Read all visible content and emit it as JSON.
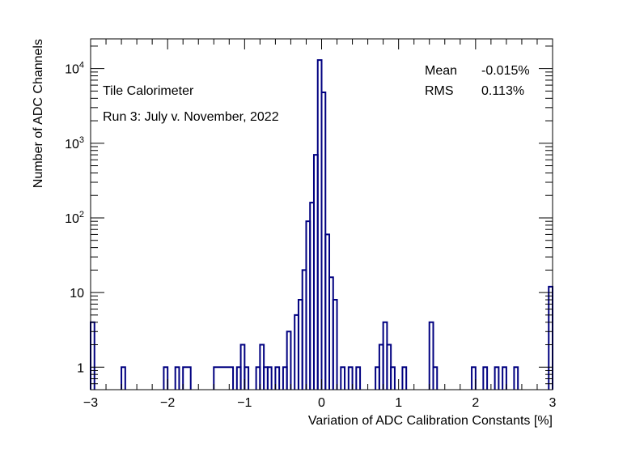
{
  "chart_data": {
    "type": "histogram",
    "xlabel": "Variation of ADC Calibration Constants [%]",
    "ylabel": "Number of ADC Channels",
    "xlim": [
      -3,
      3
    ],
    "ylim": [
      0.5,
      25000
    ],
    "yscale": "log",
    "line_color": "#000080",
    "x_ticks": [
      -3,
      -2,
      -1,
      0,
      1,
      2,
      3
    ],
    "x_tick_labels": [
      "−3",
      "−2",
      "−1",
      "0",
      "1",
      "2",
      "3"
    ],
    "y_ticks": [
      1,
      10,
      100,
      1000,
      10000
    ],
    "y_tick_labels": [
      {
        "base": "1",
        "exp": ""
      },
      {
        "base": "10",
        "exp": ""
      },
      {
        "base": "10",
        "exp": "2"
      },
      {
        "base": "10",
        "exp": "3"
      },
      {
        "base": "10",
        "exp": "4"
      }
    ],
    "annotations": [
      "Tile Calorimeter",
      "Run 3: July v. November, 2022"
    ],
    "stats": {
      "mean_label": "Mean",
      "mean_value": "-0.015%",
      "rms_label": "RMS",
      "rms_value": "0.113%"
    },
    "bins": [
      [
        -3.0,
        -2.95,
        4
      ],
      [
        -2.6,
        -2.55,
        1
      ],
      [
        -2.05,
        -2.0,
        1
      ],
      [
        -1.9,
        -1.85,
        1
      ],
      [
        -1.8,
        -1.7,
        1
      ],
      [
        -1.4,
        -1.15,
        1
      ],
      [
        -1.1,
        -1.05,
        1
      ],
      [
        -1.05,
        -1.0,
        2
      ],
      [
        -1.0,
        -0.95,
        1
      ],
      [
        -0.85,
        -0.8,
        1
      ],
      [
        -0.8,
        -0.75,
        2
      ],
      [
        -0.75,
        -0.7,
        1
      ],
      [
        -0.7,
        -0.65,
        1
      ],
      [
        -0.6,
        -0.55,
        1
      ],
      [
        -0.5,
        -0.45,
        1
      ],
      [
        -0.45,
        -0.4,
        3
      ],
      [
        -0.35,
        -0.3,
        5
      ],
      [
        -0.3,
        -0.25,
        8
      ],
      [
        -0.25,
        -0.2,
        20
      ],
      [
        -0.2,
        -0.15,
        90
      ],
      [
        -0.15,
        -0.1,
        160
      ],
      [
        -0.1,
        -0.05,
        700
      ],
      [
        -0.05,
        0.0,
        13000
      ],
      [
        0.0,
        0.05,
        4800
      ],
      [
        0.05,
        0.1,
        60
      ],
      [
        0.1,
        0.15,
        16
      ],
      [
        0.15,
        0.2,
        8
      ],
      [
        0.25,
        0.3,
        1
      ],
      [
        0.35,
        0.4,
        1
      ],
      [
        0.45,
        0.5,
        1
      ],
      [
        0.7,
        0.75,
        1
      ],
      [
        0.75,
        0.8,
        2
      ],
      [
        0.8,
        0.85,
        4
      ],
      [
        0.85,
        0.9,
        2
      ],
      [
        0.9,
        0.95,
        1
      ],
      [
        1.05,
        1.1,
        1
      ],
      [
        1.4,
        1.45,
        4
      ],
      [
        1.45,
        1.5,
        1
      ],
      [
        1.95,
        2.0,
        1
      ],
      [
        2.1,
        2.15,
        1
      ],
      [
        2.25,
        2.3,
        1
      ],
      [
        2.35,
        2.4,
        1
      ],
      [
        2.5,
        2.55,
        1
      ],
      [
        2.95,
        3.0,
        12
      ]
    ]
  }
}
